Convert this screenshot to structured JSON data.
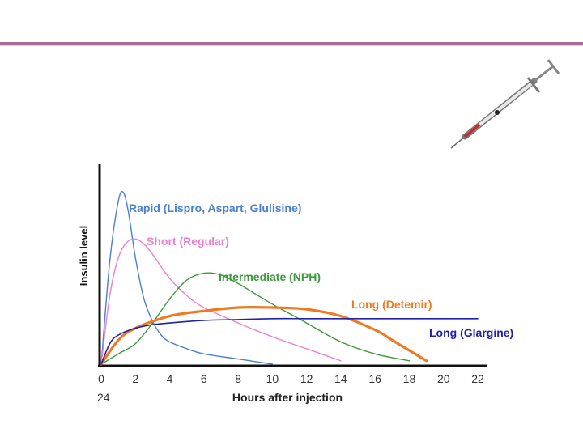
{
  "chart_data": {
    "type": "line",
    "title": "",
    "xlabel": "Hours after injection",
    "ylabel": "Insulin level",
    "x_ticks": [
      "0",
      "2",
      "4",
      "6",
      "8",
      "10",
      "12",
      "14",
      "16",
      "18",
      "20",
      "22"
    ],
    "x_extra_label": "24",
    "xlim": [
      0,
      22
    ],
    "ylim": [
      0,
      100
    ],
    "series": [
      {
        "name": "Rapid (Lispro, Aspart, Glulisine)",
        "color": "#4a7fd4",
        "x": [
          0,
          0.5,
          1.0,
          1.3,
          1.6,
          2.0,
          2.5,
          3.0,
          3.5,
          4.0,
          5.0,
          6.0,
          8.0,
          10.0
        ],
        "y": [
          0,
          60,
          95,
          100,
          88,
          62,
          38,
          25,
          17,
          13,
          9,
          6,
          3,
          0
        ]
      },
      {
        "name": "Short (Regular)",
        "color": "#ee7fd0",
        "x": [
          0,
          0.5,
          1.0,
          1.5,
          2.0,
          2.5,
          3.0,
          4.0,
          5.0,
          6.0,
          8.0,
          10.0,
          12.0,
          14.0
        ],
        "y": [
          0,
          40,
          62,
          71,
          73,
          70,
          64,
          50,
          40,
          33,
          24,
          16,
          9,
          2
        ]
      },
      {
        "name": "Intermediate (NPH)",
        "color": "#3a9a3a",
        "x": [
          0,
          1,
          2,
          3,
          4,
          5,
          6,
          7,
          8,
          9,
          10,
          12,
          14,
          16,
          18
        ],
        "y": [
          0,
          6,
          12,
          24,
          38,
          49,
          53,
          52,
          47,
          41,
          35,
          24,
          13,
          6,
          2
        ]
      },
      {
        "name": "Long (Detemir)",
        "color": "#ee7a22",
        "x": [
          0,
          1,
          2,
          4,
          6,
          8,
          10,
          12,
          14,
          16,
          17,
          18,
          19
        ],
        "y": [
          0,
          14,
          21,
          28,
          31,
          33,
          33,
          32,
          28,
          20,
          14,
          8,
          2
        ]
      },
      {
        "name": "Long (Glargine)",
        "color": "#2020a8",
        "x": [
          0,
          0.5,
          1,
          2,
          3,
          4,
          6,
          8,
          10,
          12,
          14,
          16,
          18,
          20,
          22
        ],
        "y": [
          0,
          12,
          17,
          21,
          23,
          24,
          25.5,
          26,
          26.5,
          26.5,
          26.5,
          26.5,
          26.5,
          26.5,
          26.5
        ]
      }
    ],
    "annotations": [
      {
        "text": "Rapid (Lispro, Aspart, Glulisine)",
        "series": 0
      },
      {
        "text": "Short (Regular)",
        "series": 1
      },
      {
        "text": "Intermediate (NPH)",
        "series": 2
      },
      {
        "text": "Long (Detemir)",
        "series": 3
      },
      {
        "text": "Long (Glargine)",
        "series": 4
      }
    ]
  },
  "decoration": {
    "syringe_icon": "syringe-icon",
    "rule_color": "#b06a9a"
  }
}
